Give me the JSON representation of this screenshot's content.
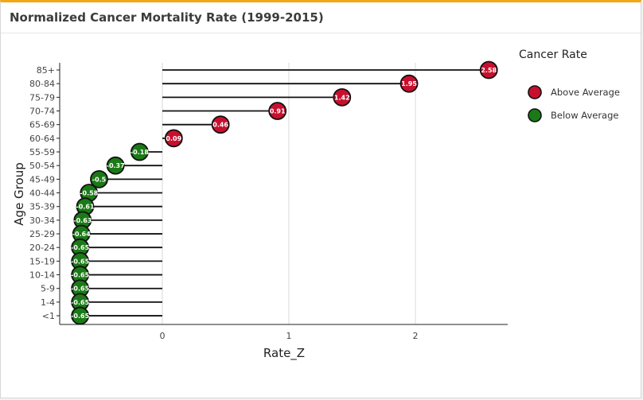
{
  "panel": {
    "title": "Normalized Cancer Mortality Rate (1999-2015)"
  },
  "colors": {
    "above": "#c8102e",
    "below": "#1b7a17",
    "accent": "#f3a712"
  },
  "chart_data": {
    "type": "lollipop",
    "xlabel": "Rate_Z",
    "ylabel": "Age Group",
    "xlim": [
      -0.8,
      2.75
    ],
    "xticks": [
      0,
      1,
      2
    ],
    "grid": "vertical",
    "categories": [
      "85+",
      "80-84",
      "75-79",
      "70-74",
      "65-69",
      "60-64",
      "55-59",
      "50-54",
      "45-49",
      "40-44",
      "35-39",
      "30-34",
      "25-29",
      "20-24",
      "15-19",
      "10-14",
      "5-9",
      "1-4",
      "<1"
    ],
    "values": [
      2.58,
      1.95,
      1.42,
      0.91,
      0.46,
      0.09,
      -0.18,
      -0.37,
      -0.5,
      -0.58,
      -0.61,
      -0.63,
      -0.64,
      -0.65,
      -0.65,
      -0.65,
      -0.65,
      -0.65,
      -0.65
    ],
    "groups": [
      "Above Average",
      "Above Average",
      "Above Average",
      "Above Average",
      "Above Average",
      "Above Average",
      "Below Average",
      "Below Average",
      "Below Average",
      "Below Average",
      "Below Average",
      "Below Average",
      "Below Average",
      "Below Average",
      "Below Average",
      "Below Average",
      "Below Average",
      "Below Average",
      "Below Average"
    ],
    "legend": {
      "title": "Cancer Rate",
      "placement": "right",
      "entries": [
        "Above Average",
        "Below Average"
      ]
    }
  }
}
